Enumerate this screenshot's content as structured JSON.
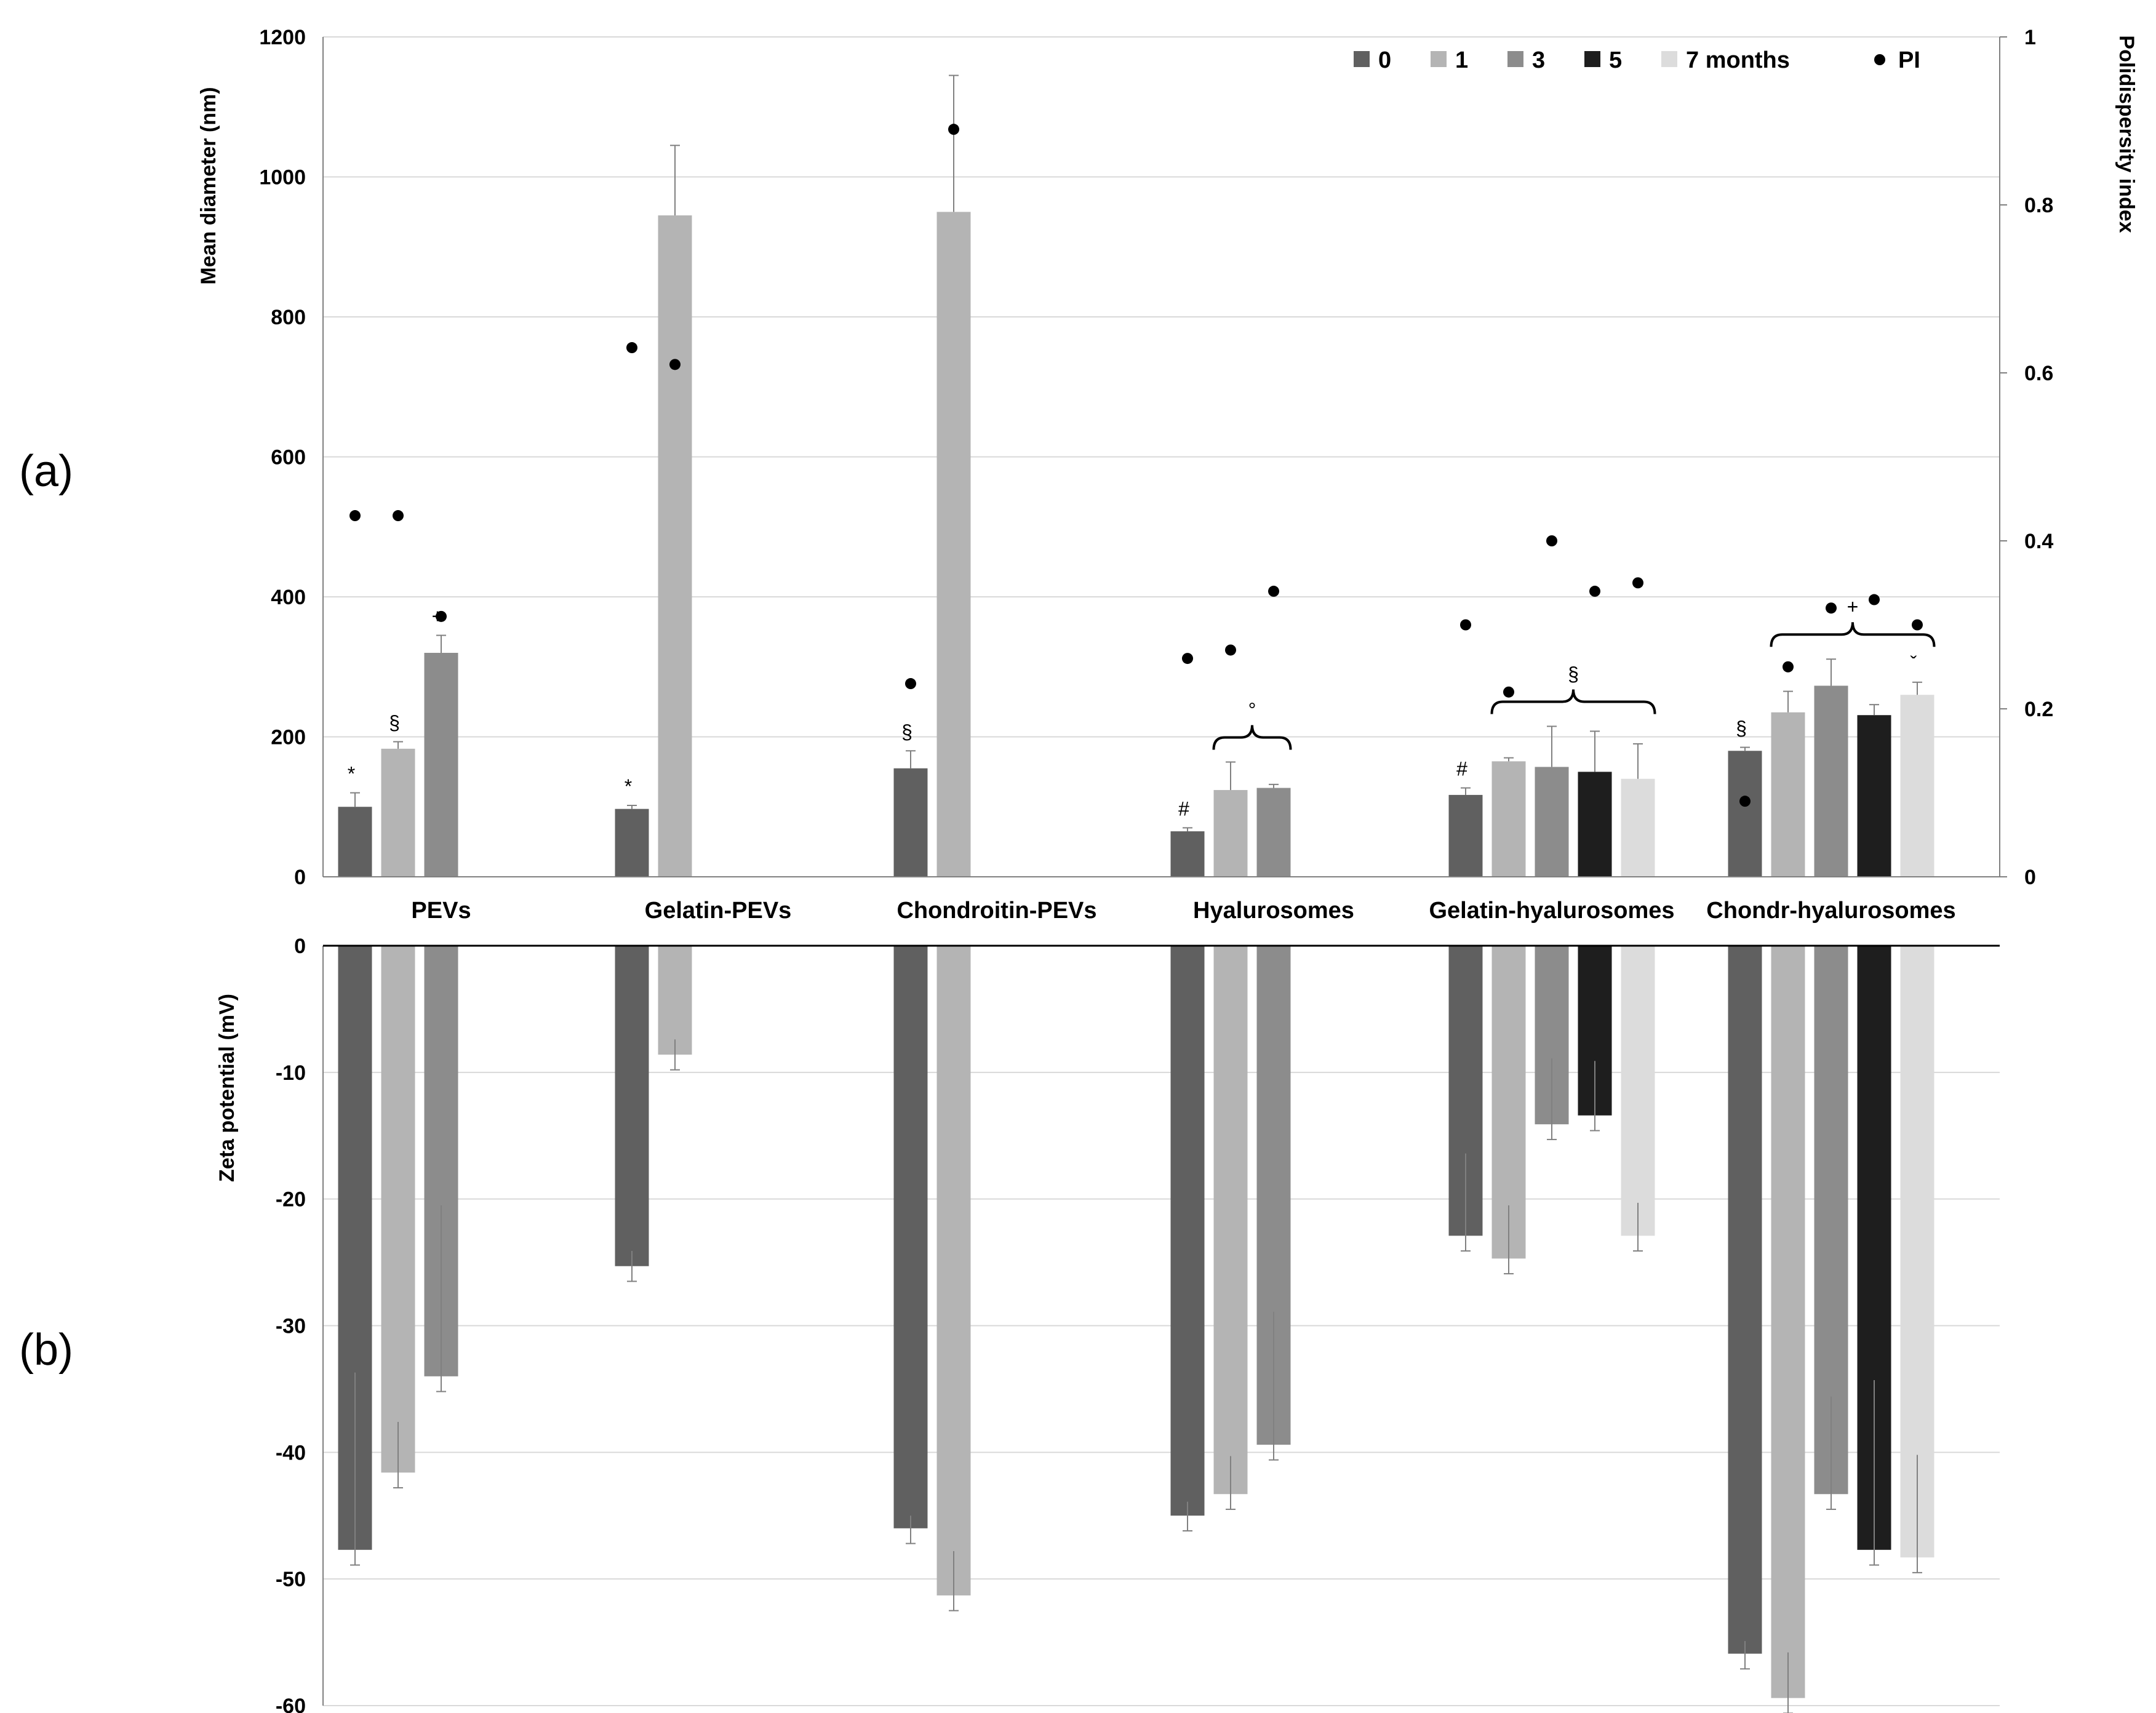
{
  "panels": {
    "a": "(a)",
    "b": "(b)"
  },
  "chart_data": [
    {
      "id": "a",
      "type": "bar",
      "title": "",
      "xlabel": "",
      "ylabel": "Mean diameter (nm)",
      "y2label": "Polidispersity index",
      "ylim": [
        0,
        1200
      ],
      "y2lim": [
        0,
        1
      ],
      "yticks": [
        "0",
        "200",
        "400",
        "600",
        "800",
        "1000",
        "1200"
      ],
      "y2ticks": [
        "0",
        "0.2",
        "0.4",
        "0.6",
        "0.8",
        "1"
      ],
      "grid": true,
      "legend_position": "top-right",
      "categories": [
        "PEVs",
        "Gelatin-PEVs",
        "Chondroitin-PEVs",
        "Hyalurosomes",
        "Gelatin-hyalurosomes",
        "Chondr-hyalurosomes"
      ],
      "series": [
        {
          "name": "0",
          "color": "#606060",
          "values": [
            100,
            97,
            155,
            65,
            117,
            180
          ],
          "errors": [
            20,
            5,
            25,
            5,
            10,
            5
          ]
        },
        {
          "name": "1",
          "color": "#b4b4b4",
          "values": [
            183,
            945,
            950,
            124,
            165,
            235
          ],
          "errors": [
            10,
            100,
            195,
            40,
            5,
            30
          ]
        },
        {
          "name": "3",
          "color": "#8c8c8c",
          "values": [
            320,
            null,
            null,
            127,
            157,
            273
          ],
          "errors": [
            25,
            null,
            null,
            5,
            58,
            38
          ]
        },
        {
          "name": "5",
          "color": "#1e1e1e",
          "values": [
            null,
            null,
            null,
            null,
            150,
            231
          ],
          "errors": [
            null,
            null,
            null,
            null,
            58,
            15
          ]
        },
        {
          "name": "7 months",
          "color": "#dcdcdc",
          "values": [
            null,
            null,
            null,
            null,
            140,
            260
          ],
          "errors": [
            null,
            null,
            null,
            null,
            50,
            18
          ]
        }
      ],
      "pi_series": {
        "name": "PI",
        "color": "#000000",
        "values": [
          [
            0.43,
            0.43,
            0.31,
            null,
            null
          ],
          [
            0.63,
            0.61,
            null,
            null,
            null
          ],
          [
            0.23,
            0.89,
            null,
            null,
            null
          ],
          [
            0.26,
            0.27,
            0.34,
            null,
            null
          ],
          [
            0.3,
            0.22,
            0.4,
            0.34,
            0.35
          ],
          [
            0.09,
            0.25,
            0.32,
            0.33,
            0.3
          ]
        ]
      },
      "annotations": [
        {
          "text": "*",
          "category": "PEVs",
          "series": "0"
        },
        {
          "text": "§",
          "category": "PEVs",
          "series": "1"
        },
        {
          "text": "+",
          "category": "PEVs",
          "series": "3"
        },
        {
          "text": "*",
          "category": "Gelatin-PEVs",
          "series": "0"
        },
        {
          "text": "§",
          "category": "Chondroitin-PEVs",
          "series": "0"
        },
        {
          "text": "#",
          "category": "Hyalurosomes",
          "series": "0"
        },
        {
          "text": "°",
          "category": "Hyalurosomes",
          "brace": [
            "1",
            "3"
          ]
        },
        {
          "text": "#",
          "category": "Gelatin-hyalurosomes",
          "series": "0"
        },
        {
          "text": "§",
          "category": "Gelatin-hyalurosomes",
          "brace": [
            "1",
            "7 months"
          ]
        },
        {
          "text": "§",
          "category": "Chondr-hyalurosomes",
          "series": "0"
        },
        {
          "text": "+",
          "category": "Chondr-hyalurosomes",
          "brace": [
            "1",
            "7 months"
          ]
        },
        {
          "text": "ˇ",
          "category": "Chondr-hyalurosomes",
          "series": "7 months"
        }
      ]
    },
    {
      "id": "b",
      "type": "bar",
      "title": "",
      "xlabel": "",
      "ylabel": "Zeta potential (mV)",
      "ylim": [
        -60,
        0
      ],
      "yticks": [
        "0",
        "-10",
        "-20",
        "-30",
        "-40",
        "-50",
        "-60"
      ],
      "grid": true,
      "categories": [
        "PEVs",
        "Gelatin-PEVs",
        "Chondroitin-PEVs",
        "Hyalurosomes",
        "Gelatin-hyalurosomes",
        "Chondr-hyalurosomes"
      ],
      "series": [
        {
          "name": "0",
          "color": "#606060",
          "values": [
            -47.7,
            -25.3,
            -46.0,
            -45.0,
            -22.9,
            -55.9
          ],
          "errors": [
            14,
            1.2,
            1.0,
            1.1,
            6.5,
            1.0
          ]
        },
        {
          "name": "1",
          "color": "#b4b4b4",
          "values": [
            -41.6,
            -8.6,
            -51.3,
            -43.3,
            -24.7,
            -59.4
          ],
          "errors": [
            4.0,
            1.2,
            3.5,
            3.0,
            4.2,
            3.6
          ]
        },
        {
          "name": "3",
          "color": "#8c8c8c",
          "values": [
            -34.0,
            null,
            null,
            -39.4,
            -14.1,
            -43.3
          ],
          "errors": [
            13.5,
            null,
            null,
            10.5,
            5.2,
            7.7
          ]
        },
        {
          "name": "5",
          "color": "#1e1e1e",
          "values": [
            null,
            null,
            null,
            null,
            -13.4,
            -47.7
          ],
          "errors": [
            null,
            null,
            null,
            null,
            4.3,
            13.4
          ]
        },
        {
          "name": "7 months",
          "color": "#dcdcdc",
          "values": [
            null,
            null,
            null,
            null,
            -22.9,
            -48.3
          ],
          "errors": [
            null,
            null,
            null,
            null,
            2.6,
            8.1
          ]
        }
      ]
    }
  ]
}
